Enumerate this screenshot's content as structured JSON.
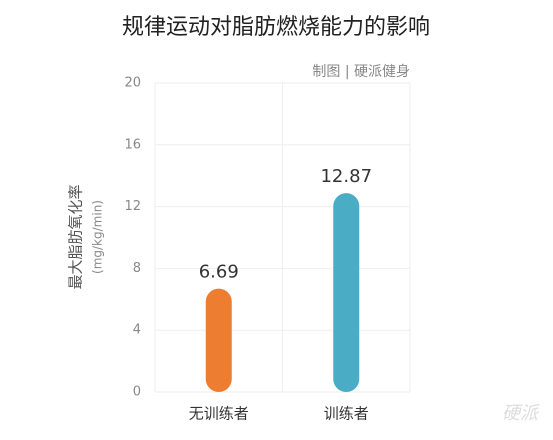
{
  "chart_data": {
    "type": "bar",
    "title": "规律运动对脂肪燃烧能力的影响",
    "subtitle": "制图 | 硬派健身",
    "y_label": "最大脂肪氧化率",
    "y_unit": "(mg/kg/min)",
    "categories": [
      "无训练者",
      "训练者"
    ],
    "values": [
      6.69,
      12.87
    ],
    "colors": [
      "#ed7d31",
      "#4bacc6"
    ],
    "ylim": [
      0,
      20
    ],
    "yticks": [
      0,
      4,
      8,
      12,
      16,
      20
    ],
    "grid": true,
    "watermark": "硬派"
  }
}
